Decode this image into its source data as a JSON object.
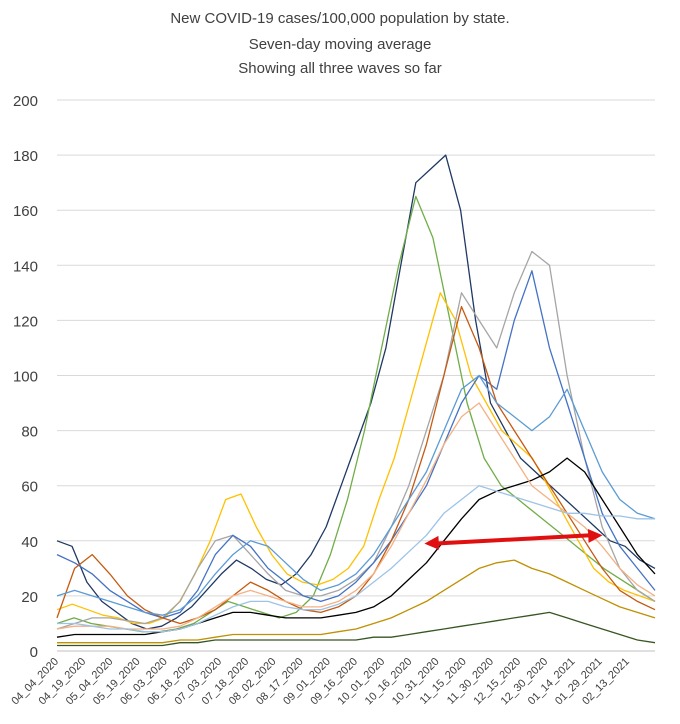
{
  "chart_data": {
    "type": "line",
    "title": [
      "New COVID-19 cases/100,000 population by state.",
      "Seven-day moving average",
      "Showing all three waves so far"
    ],
    "xlabel": "",
    "ylabel": "",
    "ylim": [
      0,
      200
    ],
    "yticks": [
      0,
      20,
      40,
      60,
      80,
      100,
      120,
      140,
      160,
      180,
      200
    ],
    "x_tick_labels": [
      "04_04_2020",
      "04_19_2020",
      "05_04_2020",
      "05_19_2020",
      "06_03_2020",
      "06_18_2020",
      "07_03_2020",
      "07_18_2020",
      "08_02_2020",
      "08_17_2020",
      "09_01_2020",
      "09_16_2020",
      "10_01_2020",
      "10_16_2020",
      "10_31_2020",
      "11_15_2020",
      "11_30_2020",
      "12_15_2020",
      "12_30_2020",
      "01_14_2021",
      "01_29_2021",
      "02_13_2021"
    ],
    "grid": "horizontal",
    "legend": "none",
    "series_note": "Many state series (no legend printed); representative values sampled every 5 days",
    "series": [
      {
        "color": "#1f3864",
        "values": [
          40,
          38,
          25,
          18,
          14,
          10,
          8,
          9,
          12,
          16,
          22,
          28,
          33,
          30,
          26,
          24,
          28,
          35,
          45,
          60,
          75,
          90,
          110,
          140,
          170,
          175,
          180,
          160,
          120,
          90,
          80,
          70,
          65,
          60,
          55,
          50,
          45,
          40,
          38,
          33,
          30
        ]
      },
      {
        "color": "#70ad47",
        "values": [
          10,
          12,
          10,
          9,
          8,
          7,
          7,
          8,
          10,
          14,
          18,
          16,
          14,
          12,
          14,
          20,
          35,
          55,
          80,
          110,
          140,
          165,
          150,
          120,
          90,
          70,
          60,
          55,
          50,
          45,
          40,
          35,
          30,
          26,
          22,
          18
        ]
      },
      {
        "color": "#ffc000",
        "values": [
          15,
          17,
          15,
          13,
          12,
          10,
          10,
          12,
          18,
          28,
          40,
          55,
          57,
          45,
          35,
          28,
          25,
          24,
          26,
          30,
          38,
          55,
          70,
          90,
          110,
          130,
          120,
          100,
          90,
          80,
          75,
          70,
          60,
          50,
          40,
          30,
          25,
          22,
          20,
          18
        ]
      },
      {
        "color": "#a5a5a5",
        "values": [
          8,
          10,
          12,
          12,
          11,
          10,
          12,
          18,
          30,
          40,
          42,
          35,
          28,
          22,
          20,
          20,
          22,
          26,
          32,
          45,
          60,
          80,
          100,
          130,
          120,
          110,
          130,
          145,
          140,
          100,
          70,
          45,
          30,
          22,
          18
        ]
      },
      {
        "color": "#4472c4",
        "values": [
          35,
          32,
          28,
          22,
          18,
          14,
          12,
          14,
          22,
          35,
          42,
          38,
          30,
          25,
          20,
          18,
          20,
          25,
          32,
          40,
          50,
          60,
          75,
          90,
          100,
          95,
          120,
          138,
          110,
          90,
          70,
          50,
          38,
          30,
          22
        ]
      },
      {
        "color": "#c55a11",
        "values": [
          12,
          30,
          35,
          28,
          20,
          15,
          12,
          10,
          12,
          15,
          20,
          25,
          22,
          18,
          15,
          14,
          16,
          20,
          28,
          40,
          55,
          75,
          100,
          125,
          110,
          90,
          80,
          70,
          60,
          50,
          40,
          30,
          22,
          18,
          15
        ]
      },
      {
        "color": "#5b9bd5",
        "values": [
          20,
          22,
          20,
          18,
          16,
          14,
          13,
          15,
          20,
          28,
          35,
          40,
          38,
          32,
          26,
          22,
          24,
          28,
          35,
          45,
          55,
          65,
          80,
          95,
          100,
          90,
          85,
          80,
          85,
          95,
          80,
          65,
          55,
          50,
          48
        ]
      },
      {
        "color": "#375623",
        "values": [
          2,
          2,
          2,
          2,
          2,
          2,
          2,
          3,
          3,
          4,
          4,
          4,
          4,
          4,
          4,
          4,
          4,
          4,
          5,
          5,
          6,
          7,
          8,
          9,
          10,
          11,
          12,
          13,
          14,
          12,
          10,
          8,
          6,
          4,
          3
        ]
      },
      {
        "color": "#000000",
        "values": [
          5,
          6,
          6,
          6,
          6,
          6,
          7,
          8,
          10,
          12,
          14,
          14,
          13,
          12,
          12,
          12,
          13,
          14,
          16,
          20,
          26,
          32,
          40,
          48,
          55,
          58,
          60,
          62,
          65,
          70,
          65,
          55,
          45,
          35,
          28
        ]
      },
      {
        "color": "#f4b183",
        "values": [
          8,
          9,
          9,
          9,
          8,
          8,
          8,
          9,
          12,
          16,
          20,
          22,
          20,
          18,
          16,
          16,
          18,
          22,
          28,
          38,
          50,
          62,
          75,
          85,
          90,
          80,
          70,
          60,
          55,
          50,
          45,
          38,
          30,
          24,
          20
        ]
      },
      {
        "color": "#9dc3e6",
        "values": [
          10,
          10,
          9,
          8,
          8,
          7,
          7,
          8,
          10,
          13,
          16,
          18,
          18,
          16,
          15,
          15,
          17,
          20,
          25,
          30,
          36,
          42,
          50,
          55,
          60,
          58,
          56,
          54,
          52,
          50,
          50,
          49,
          49,
          48,
          48
        ]
      },
      {
        "color": "#bf9000",
        "values": [
          3,
          3,
          3,
          3,
          3,
          3,
          3,
          4,
          4,
          5,
          6,
          6,
          6,
          6,
          6,
          6,
          7,
          8,
          10,
          12,
          15,
          18,
          22,
          26,
          30,
          32,
          33,
          30,
          28,
          25,
          22,
          19,
          16,
          14,
          12
        ]
      }
    ],
    "annotations": [
      {
        "type": "double-arrow",
        "color": "#e01010",
        "x0": "10_16_2020",
        "y0": 39,
        "x1": "01_29_2021",
        "y1": 42
      }
    ]
  }
}
